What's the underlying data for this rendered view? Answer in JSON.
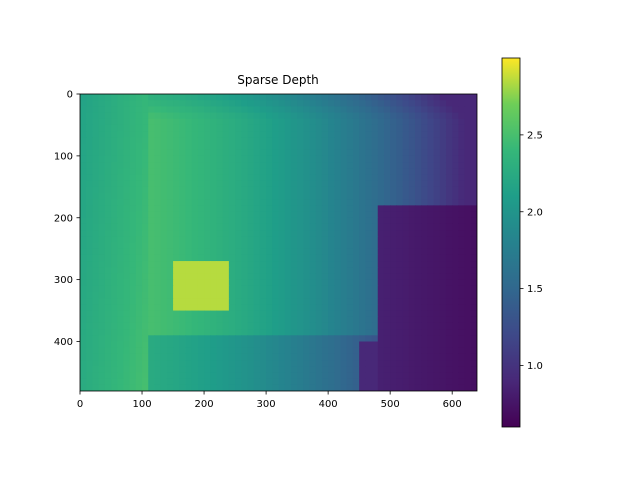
{
  "chart_data": {
    "type": "heatmap",
    "title": "Sparse Depth",
    "xlabel": "",
    "ylabel": "",
    "image_size": [
      640,
      480
    ],
    "xlim": [
      0,
      640
    ],
    "ylim": [
      480,
      0
    ],
    "xticks": [
      0,
      100,
      200,
      300,
      400,
      500,
      600
    ],
    "yticks": [
      0,
      100,
      200,
      300,
      400
    ],
    "colormap": "viridis",
    "colorbar": {
      "vmin": 0.6,
      "vmax": 3.0,
      "ticks": [
        1.0,
        1.5,
        2.0,
        2.5
      ],
      "tick_labels": [
        "1.0",
        "1.5",
        "2.0",
        "2.5"
      ]
    },
    "scene_summary": {
      "left_wall_depth": 2.4,
      "bright_region_depth": 2.85,
      "back_wall_center_depth": 1.9,
      "back_wall_right_depth": 1.2,
      "near_right_object_depth": 0.7
    }
  }
}
